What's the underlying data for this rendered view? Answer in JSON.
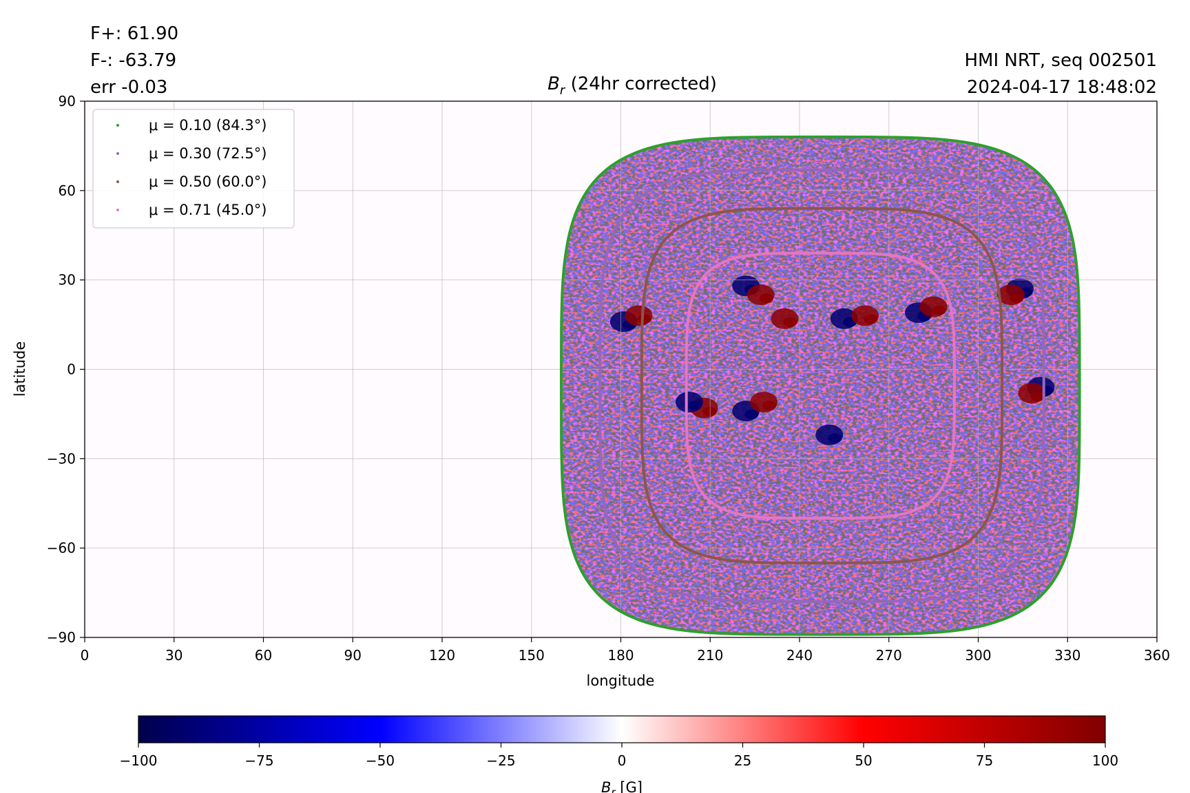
{
  "header": {
    "flux_pos": "F+: 61.90",
    "flux_neg": "F-: -63.79",
    "err": "err -0.03",
    "source": "HMI NRT, seq 002501",
    "timestamp": "2024-04-17 18:48:02"
  },
  "chart_data": {
    "type": "heatmap",
    "title": {
      "main": "B",
      "sub": "r",
      "rest": " (24hr corrected)"
    },
    "xlabel": "longitude",
    "ylabel": "latitude",
    "xlim": [
      0,
      360
    ],
    "ylim": [
      -90,
      90
    ],
    "xticks": [
      {
        "value": 0,
        "label": "0"
      },
      {
        "value": 30,
        "label": "30"
      },
      {
        "value": 60,
        "label": "60"
      },
      {
        "value": 90,
        "label": "90"
      },
      {
        "value": 120,
        "label": "120"
      },
      {
        "value": 150,
        "label": "150"
      },
      {
        "value": 180,
        "label": "180"
      },
      {
        "value": 210,
        "label": "210"
      },
      {
        "value": 240,
        "label": "240"
      },
      {
        "value": 270,
        "label": "270"
      },
      {
        "value": 300,
        "label": "300"
      },
      {
        "value": 330,
        "label": "330"
      },
      {
        "value": 360,
        "label": "360"
      }
    ],
    "yticks": [
      {
        "value": -90,
        "label": "−90"
      },
      {
        "value": -60,
        "label": "−60"
      },
      {
        "value": -30,
        "label": "−30"
      },
      {
        "value": 0,
        "label": "0"
      },
      {
        "value": 30,
        "label": "30"
      },
      {
        "value": 60,
        "label": "60"
      },
      {
        "value": 90,
        "label": "90"
      }
    ],
    "grid": true,
    "legend_position": "top-left",
    "disk": {
      "lon_min": 160,
      "lon_max": 334,
      "lat_min": -89,
      "lat_max": 78
    },
    "series": [
      {
        "name": "μ = 0.10 (84.3°)",
        "color": "#2ca02c",
        "lon_min": 160,
        "lon_max": 334,
        "lat_min": -89,
        "lat_max": 78
      },
      {
        "name": "μ = 0.30 (72.5°)",
        "color": "#9467bd",
        "lon_min": 173,
        "lon_max": 322,
        "lat_min": -78,
        "lat_max": 67
      },
      {
        "name": "μ = 0.50 (60.0°)",
        "color": "#8c564b",
        "lon_min": 187,
        "lon_max": 308,
        "lat_min": -65,
        "lat_max": 54
      },
      {
        "name": "μ = 0.71 (45.0°)",
        "color": "#e377c2",
        "lon_min": 202,
        "lon_max": 292,
        "lat_min": -50,
        "lat_max": 39
      }
    ],
    "active_regions": [
      {
        "lon": 222,
        "lat": 28,
        "polarity": "negative"
      },
      {
        "lon": 227,
        "lat": 25,
        "polarity": "positive"
      },
      {
        "lon": 235,
        "lat": 17,
        "polarity": "positive"
      },
      {
        "lon": 181,
        "lat": 16,
        "polarity": "negative"
      },
      {
        "lon": 186,
        "lat": 18,
        "polarity": "positive"
      },
      {
        "lon": 314,
        "lat": 27,
        "polarity": "negative"
      },
      {
        "lon": 311,
        "lat": 25,
        "polarity": "positive"
      },
      {
        "lon": 255,
        "lat": 17,
        "polarity": "negative"
      },
      {
        "lon": 262,
        "lat": 18,
        "polarity": "positive"
      },
      {
        "lon": 280,
        "lat": 19,
        "polarity": "negative"
      },
      {
        "lon": 285,
        "lat": 21,
        "polarity": "positive"
      },
      {
        "lon": 208,
        "lat": -13,
        "polarity": "positive"
      },
      {
        "lon": 203,
        "lat": -11,
        "polarity": "negative"
      },
      {
        "lon": 222,
        "lat": -14,
        "polarity": "negative"
      },
      {
        "lon": 228,
        "lat": -11,
        "polarity": "positive"
      },
      {
        "lon": 250,
        "lat": -22,
        "polarity": "negative"
      },
      {
        "lon": 321,
        "lat": -6,
        "polarity": "negative"
      },
      {
        "lon": 318,
        "lat": -8,
        "polarity": "positive"
      }
    ],
    "colorbar": {
      "label_main": "B",
      "label_sub": "r",
      "label_unit": " [G]",
      "vmin": -100,
      "vmax": 100,
      "ticks": [
        {
          "value": -100,
          "label": "−100"
        },
        {
          "value": -75,
          "label": "−75"
        },
        {
          "value": -50,
          "label": "−50"
        },
        {
          "value": -25,
          "label": "−25"
        },
        {
          "value": 0,
          "label": "0"
        },
        {
          "value": 25,
          "label": "25"
        },
        {
          "value": 50,
          "label": "50"
        },
        {
          "value": 75,
          "label": "75"
        },
        {
          "value": 100,
          "label": "100"
        }
      ],
      "colors": [
        "#00004c",
        "#0000ff",
        "#ffffff",
        "#ff0000",
        "#800000"
      ]
    }
  }
}
